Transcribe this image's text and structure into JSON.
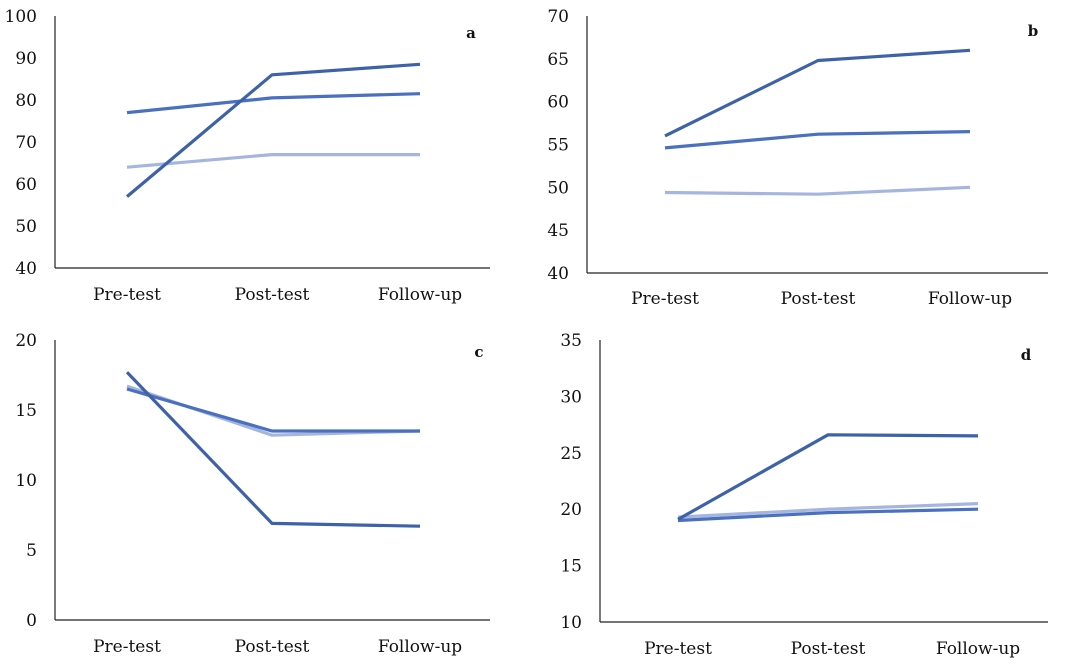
{
  "series_colors": [
    "#3E62A8",
    "#4A70C0",
    "#A5B5E0"
  ],
  "chart_data": [
    {
      "panel": "a",
      "type": "line",
      "categories": [
        "Pre-test",
        "Post-test",
        "Follow-up"
      ],
      "ylim": [
        40,
        100
      ],
      "yticks": [
        40,
        50,
        60,
        70,
        80,
        90,
        100
      ],
      "grid": false,
      "series": [
        {
          "values": [
            57,
            86,
            88.5
          ]
        },
        {
          "values": [
            77,
            80.5,
            81.5
          ]
        },
        {
          "values": [
            64,
            67,
            67
          ]
        }
      ]
    },
    {
      "panel": "b",
      "type": "line",
      "categories": [
        "Pre-test",
        "Post-test",
        "Follow-up"
      ],
      "ylim": [
        40,
        70
      ],
      "yticks": [
        40,
        45,
        50,
        55,
        60,
        65,
        70
      ],
      "grid": false,
      "series": [
        {
          "values": [
            56,
            64.8,
            66
          ]
        },
        {
          "values": [
            54.6,
            56.2,
            56.5
          ]
        },
        {
          "values": [
            49.4,
            49.2,
            50
          ]
        }
      ]
    },
    {
      "panel": "c",
      "type": "line",
      "categories": [
        "Pre-test",
        "Post-test",
        "Follow-up"
      ],
      "ylim": [
        0,
        20
      ],
      "yticks": [
        0,
        5,
        10,
        15,
        20
      ],
      "grid": false,
      "series": [
        {
          "values": [
            17.7,
            6.9,
            6.7
          ]
        },
        {
          "values": [
            16.5,
            13.5,
            13.5
          ]
        },
        {
          "values": [
            16.7,
            13.2,
            13.5
          ]
        }
      ]
    },
    {
      "panel": "d",
      "type": "line",
      "categories": [
        "Pre-test",
        "Post-test",
        "Follow-up"
      ],
      "ylim": [
        10,
        35
      ],
      "yticks": [
        10,
        15,
        20,
        25,
        30,
        35
      ],
      "grid": false,
      "series": [
        {
          "values": [
            19.1,
            26.6,
            26.5
          ]
        },
        {
          "values": [
            19.0,
            19.7,
            20.0
          ]
        },
        {
          "values": [
            19.3,
            20.0,
            20.5
          ]
        }
      ]
    }
  ]
}
